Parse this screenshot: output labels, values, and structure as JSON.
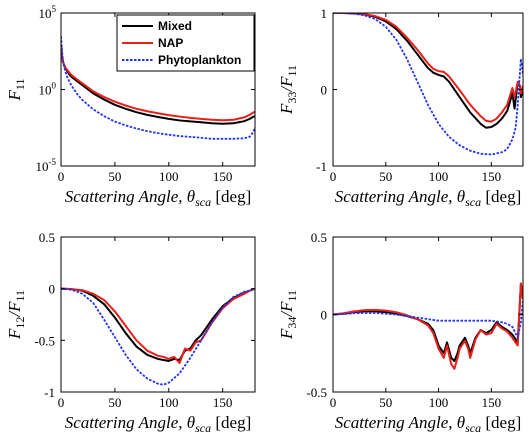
{
  "chart_data": [
    {
      "type": "line",
      "panel": "F11",
      "yscale": "log",
      "xlim": [
        0,
        180
      ],
      "ylim": [
        1e-05,
        100000
      ],
      "xticks": [
        0,
        50,
        100,
        150
      ],
      "xtick_labels": [
        "0",
        "50",
        "100",
        "150"
      ],
      "yticks": [
        1e-05,
        1,
        100000
      ],
      "ytick_labels": [
        {
          "base": "10",
          "exp": "-5"
        },
        {
          "base": "10",
          "exp": "0"
        },
        {
          "base": "10",
          "exp": "5"
        }
      ],
      "xlabel": {
        "text": "Scattering Angle, ",
        "symbol": "θ",
        "sub": "sca",
        "unit": " [deg]"
      },
      "ylabel": {
        "parts": [
          {
            "text": "F",
            "sub": "11"
          }
        ]
      },
      "legend": {
        "placement": "top-right",
        "entries": [
          "Mixed",
          "NAP",
          "Phytoplankton"
        ]
      },
      "series": [
        {
          "name": "Mixed",
          "color": "#000000",
          "x": [
            0,
            1,
            2,
            4,
            6,
            8,
            10,
            15,
            20,
            30,
            40,
            50,
            60,
            70,
            80,
            90,
            100,
            110,
            120,
            130,
            140,
            150,
            160,
            170,
            175,
            178,
            180
          ],
          "y": [
            800,
            150,
            60,
            25,
            15,
            9,
            6.5,
            3.5,
            1.9,
            0.55,
            0.22,
            0.1,
            0.055,
            0.033,
            0.022,
            0.016,
            0.012,
            0.0095,
            0.0082,
            0.0072,
            0.0062,
            0.0058,
            0.0062,
            0.0085,
            0.012,
            0.016,
            0.018
          ]
        },
        {
          "name": "NAP",
          "color": "#e8201a",
          "x": [
            0,
            1,
            2,
            4,
            6,
            8,
            10,
            15,
            20,
            30,
            40,
            50,
            60,
            70,
            80,
            90,
            100,
            110,
            120,
            130,
            140,
            150,
            160,
            170,
            175,
            178,
            180
          ],
          "y": [
            700,
            140,
            60,
            28,
            18,
            12,
            8.5,
            4.5,
            2.5,
            0.75,
            0.32,
            0.16,
            0.09,
            0.055,
            0.038,
            0.028,
            0.021,
            0.017,
            0.014,
            0.012,
            0.0105,
            0.0098,
            0.0105,
            0.015,
            0.022,
            0.03,
            0.035
          ]
        },
        {
          "name": "Phytoplankton",
          "color": "#2233ee",
          "x": [
            0,
            1,
            2,
            4,
            6,
            8,
            10,
            15,
            20,
            30,
            40,
            50,
            60,
            70,
            80,
            90,
            100,
            110,
            120,
            130,
            140,
            150,
            160,
            170,
            175,
            178,
            180
          ],
          "y": [
            3000,
            300,
            60,
            15,
            6,
            3,
            1.7,
            0.5,
            0.2,
            0.05,
            0.018,
            0.008,
            0.0045,
            0.0028,
            0.0019,
            0.0014,
            0.0011,
            0.0009,
            0.0008,
            0.0007,
            0.0006,
            0.0006,
            0.0006,
            0.00065,
            0.0008,
            0.0015,
            0.003
          ]
        }
      ]
    },
    {
      "type": "line",
      "panel": "F33/F11",
      "xlim": [
        0,
        180
      ],
      "ylim": [
        -1,
        1
      ],
      "xticks": [
        0,
        50,
        100,
        150
      ],
      "xtick_labels": [
        "0",
        "50",
        "100",
        "150"
      ],
      "yticks": [
        -1,
        0,
        1
      ],
      "ytick_labels": [
        "-1",
        "0",
        "1"
      ],
      "xlabel": {
        "text": "Scattering Angle, ",
        "symbol": "θ",
        "sub": "sca",
        "unit": " [deg]"
      },
      "ylabel": {
        "parts": [
          {
            "text": "F",
            "sub": "33"
          },
          {
            "text": "/F",
            "sub": "11"
          }
        ]
      },
      "series": [
        {
          "name": "Mixed",
          "color": "#000000",
          "x": [
            0,
            10,
            20,
            30,
            40,
            50,
            60,
            70,
            80,
            90,
            95,
            100,
            105,
            110,
            120,
            130,
            140,
            145,
            150,
            155,
            160,
            165,
            170,
            172,
            175,
            177,
            178,
            180
          ],
          "y": [
            1,
            1,
            0.995,
            0.98,
            0.95,
            0.89,
            0.79,
            0.64,
            0.46,
            0.28,
            0.22,
            0.19,
            0.17,
            0.1,
            -0.1,
            -0.3,
            -0.45,
            -0.5,
            -0.49,
            -0.45,
            -0.38,
            -0.28,
            -0.05,
            -0.25,
            0.1,
            0.05,
            -0.1,
            0.0
          ]
        },
        {
          "name": "NAP",
          "color": "#e8201a",
          "x": [
            0,
            10,
            20,
            30,
            40,
            50,
            60,
            70,
            80,
            90,
            95,
            100,
            105,
            110,
            120,
            130,
            140,
            145,
            150,
            155,
            160,
            165,
            170,
            172,
            175,
            177,
            178,
            180
          ],
          "y": [
            1,
            1,
            0.995,
            0.985,
            0.96,
            0.91,
            0.82,
            0.68,
            0.52,
            0.34,
            0.27,
            0.24,
            0.23,
            0.17,
            -0.01,
            -0.2,
            -0.35,
            -0.41,
            -0.42,
            -0.38,
            -0.3,
            -0.2,
            0.02,
            -0.1,
            0.1,
            0.05,
            -0.05,
            0.05
          ]
        },
        {
          "name": "Phytoplankton",
          "color": "#2233ee",
          "x": [
            0,
            10,
            20,
            30,
            40,
            50,
            60,
            70,
            80,
            90,
            100,
            110,
            120,
            130,
            140,
            150,
            160,
            165,
            170,
            173,
            175,
            177,
            178,
            180
          ],
          "y": [
            1,
            1,
            0.99,
            0.97,
            0.92,
            0.82,
            0.65,
            0.4,
            0.1,
            -0.2,
            -0.45,
            -0.62,
            -0.73,
            -0.8,
            -0.84,
            -0.85,
            -0.82,
            -0.78,
            -0.65,
            -0.5,
            -0.2,
            0.2,
            0.4,
            0.2
          ]
        }
      ]
    },
    {
      "type": "line",
      "panel": "F12/F11",
      "xlim": [
        0,
        180
      ],
      "ylim": [
        -1,
        0.5
      ],
      "xticks": [
        0,
        50,
        100,
        150
      ],
      "xtick_labels": [
        "0",
        "50",
        "100",
        "150"
      ],
      "yticks": [
        -1,
        -0.5,
        0,
        0.5
      ],
      "ytick_labels": [
        "-1",
        "-0.5",
        "0",
        "0.5"
      ],
      "xlabel": {
        "text": "Scattering Angle, ",
        "symbol": "θ",
        "sub": "sca",
        "unit": " [deg]"
      },
      "ylabel": {
        "parts": [
          {
            "text": "F",
            "sub": "12"
          },
          {
            "text": "/F",
            "sub": "11"
          }
        ]
      },
      "series": [
        {
          "name": "Mixed",
          "color": "#000000",
          "x": [
            0,
            10,
            20,
            30,
            40,
            50,
            60,
            70,
            80,
            90,
            95,
            100,
            105,
            110,
            115,
            120,
            125,
            130,
            140,
            150,
            160,
            170,
            175,
            180
          ],
          "y": [
            0,
            -0.005,
            -0.02,
            -0.07,
            -0.15,
            -0.28,
            -0.43,
            -0.56,
            -0.64,
            -0.68,
            -0.69,
            -0.7,
            -0.68,
            -0.69,
            -0.6,
            -0.58,
            -0.5,
            -0.45,
            -0.3,
            -0.17,
            -0.09,
            -0.04,
            -0.02,
            0
          ]
        },
        {
          "name": "NAP",
          "color": "#e8201a",
          "x": [
            0,
            10,
            20,
            30,
            40,
            50,
            60,
            70,
            80,
            90,
            95,
            100,
            105,
            110,
            115,
            120,
            125,
            130,
            140,
            150,
            160,
            170,
            175,
            180
          ],
          "y": [
            0,
            -0.004,
            -0.015,
            -0.05,
            -0.11,
            -0.22,
            -0.36,
            -0.5,
            -0.6,
            -0.65,
            -0.66,
            -0.68,
            -0.66,
            -0.72,
            -0.58,
            -0.6,
            -0.52,
            -0.5,
            -0.33,
            -0.19,
            -0.1,
            -0.05,
            -0.02,
            0
          ]
        },
        {
          "name": "Phytoplankton",
          "color": "#2233ee",
          "x": [
            0,
            10,
            20,
            30,
            40,
            50,
            60,
            70,
            80,
            90,
            95,
            100,
            110,
            120,
            130,
            140,
            150,
            160,
            170,
            175,
            180
          ],
          "y": [
            0,
            -0.01,
            -0.05,
            -0.14,
            -0.3,
            -0.47,
            -0.64,
            -0.78,
            -0.87,
            -0.92,
            -0.93,
            -0.91,
            -0.82,
            -0.67,
            -0.5,
            -0.33,
            -0.18,
            -0.08,
            -0.03,
            -0.02,
            0
          ]
        }
      ]
    },
    {
      "type": "line",
      "panel": "F34/F11",
      "xlim": [
        0,
        180
      ],
      "ylim": [
        -0.5,
        0.5
      ],
      "xticks": [
        0,
        50,
        100,
        150
      ],
      "xtick_labels": [
        "0",
        "50",
        "100",
        "150"
      ],
      "yticks": [
        -0.5,
        0,
        0.5
      ],
      "ytick_labels": [
        "-0.5",
        "0",
        "0.5"
      ],
      "xlabel": {
        "text": "Scattering Angle, ",
        "symbol": "θ",
        "sub": "sca",
        "unit": " [deg]"
      },
      "ylabel": {
        "parts": [
          {
            "text": "F",
            "sub": "34"
          },
          {
            "text": "/F",
            "sub": "11"
          }
        ]
      },
      "series": [
        {
          "name": "Mixed",
          "color": "#000000",
          "x": [
            0,
            10,
            20,
            30,
            40,
            50,
            60,
            70,
            80,
            90,
            95,
            100,
            105,
            108,
            112,
            115,
            118,
            120,
            125,
            128,
            130,
            135,
            140,
            145,
            150,
            155,
            160,
            165,
            170,
            175,
            178,
            180
          ],
          "y": [
            0,
            0.005,
            0.015,
            0.02,
            0.02,
            0.015,
            0.005,
            -0.01,
            -0.03,
            -0.06,
            -0.1,
            -0.2,
            -0.25,
            -0.18,
            -0.28,
            -0.3,
            -0.25,
            -0.2,
            -0.15,
            -0.2,
            -0.25,
            -0.15,
            -0.1,
            -0.12,
            -0.1,
            -0.05,
            -0.08,
            -0.1,
            -0.13,
            -0.18,
            0.2,
            0.1
          ]
        },
        {
          "name": "NAP",
          "color": "#e8201a",
          "x": [
            0,
            10,
            20,
            30,
            40,
            50,
            60,
            70,
            80,
            90,
            95,
            100,
            105,
            108,
            112,
            115,
            118,
            120,
            125,
            128,
            130,
            135,
            140,
            145,
            150,
            155,
            160,
            165,
            170,
            175,
            178,
            180
          ],
          "y": [
            0,
            0.008,
            0.02,
            0.028,
            0.03,
            0.025,
            0.015,
            -0.005,
            -0.03,
            -0.07,
            -0.12,
            -0.22,
            -0.28,
            -0.2,
            -0.32,
            -0.35,
            -0.28,
            -0.22,
            -0.17,
            -0.22,
            -0.28,
            -0.16,
            -0.1,
            -0.13,
            -0.12,
            -0.06,
            -0.09,
            -0.11,
            -0.15,
            -0.2,
            0.2,
            0.1
          ]
        },
        {
          "name": "Phytoplankton",
          "color": "#2233ee",
          "x": [
            0,
            10,
            20,
            30,
            40,
            50,
            60,
            70,
            80,
            90,
            100,
            110,
            120,
            130,
            140,
            150,
            160,
            165,
            170,
            175,
            178,
            180
          ],
          "y": [
            0,
            0.003,
            0.008,
            0.01,
            0.01,
            0.005,
            0,
            -0.01,
            -0.02,
            -0.03,
            -0.04,
            -0.04,
            -0.04,
            -0.04,
            -0.04,
            -0.04,
            -0.05,
            -0.06,
            -0.08,
            -0.15,
            -0.05,
            0.1
          ]
        }
      ]
    }
  ]
}
